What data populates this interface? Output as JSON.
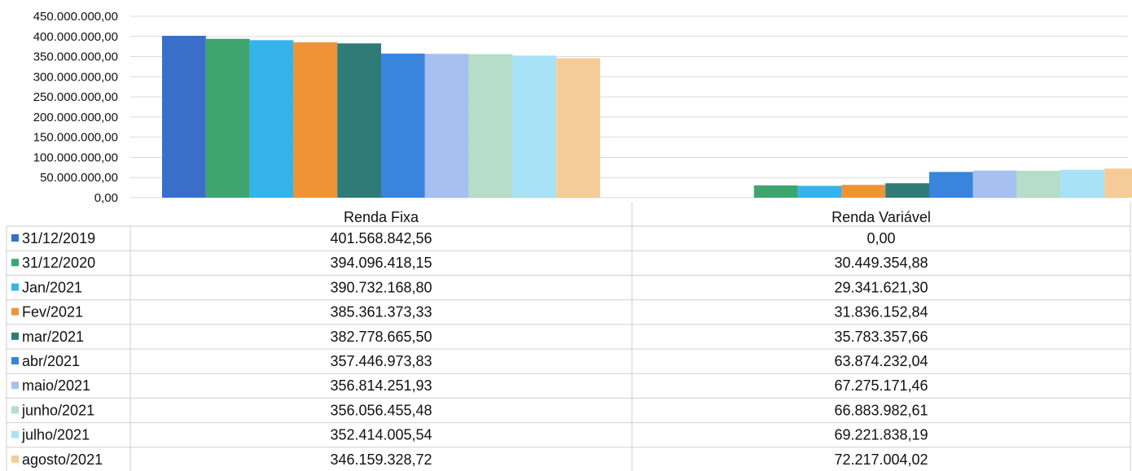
{
  "chart_data": {
    "type": "bar",
    "categories": [
      "Renda Fixa",
      "Renda Variável"
    ],
    "ylim": [
      0,
      450000000
    ],
    "y_ticks": [
      0,
      50000000,
      100000000,
      150000000,
      200000000,
      250000000,
      300000000,
      350000000,
      400000000,
      450000000
    ],
    "y_tick_labels": [
      "0,00",
      "50.000.000,00",
      "100.000.000,00",
      "150.000.000,00",
      "200.000.000,00",
      "250.000.000,00",
      "300.000.000,00",
      "350.000.000,00",
      "400.000.000,00",
      "450.000.000,00"
    ],
    "grid": true,
    "legend": "data-table",
    "series": [
      {
        "name": "31/12/2019",
        "color": "#3a6fc9",
        "values": [
          401568842.56,
          0.0
        ],
        "labels": [
          "401.568.842,56",
          "0,00"
        ]
      },
      {
        "name": "31/12/2020",
        "color": "#3fa56f",
        "values": [
          394096418.15,
          30449354.88
        ],
        "labels": [
          "394.096.418,15",
          "30.449.354,88"
        ]
      },
      {
        "name": "Jan/2021",
        "color": "#37b3ec",
        "values": [
          390732168.8,
          29341621.3
        ],
        "labels": [
          "390.732.168,80",
          "29.341.621,30"
        ]
      },
      {
        "name": "Fev/2021",
        "color": "#ee9437",
        "values": [
          385361373.33,
          31836152.84
        ],
        "labels": [
          "385.361.373,33",
          "31.836.152,84"
        ]
      },
      {
        "name": "mar/2021",
        "color": "#2f7b77",
        "values": [
          382778665.5,
          35783357.66
        ],
        "labels": [
          "382.778.665,50",
          "35.783.357,66"
        ]
      },
      {
        "name": "abr/2021",
        "color": "#3985de",
        "values": [
          357446973.83,
          63874232.04
        ],
        "labels": [
          "357.446.973,83",
          "63.874.232,04"
        ]
      },
      {
        "name": "maio/2021",
        "color": "#a6c1f0",
        "values": [
          356814251.93,
          67275171.46
        ],
        "labels": [
          "356.814.251,93",
          "67.275.171,46"
        ]
      },
      {
        "name": "junho/2021",
        "color": "#b6ddc7",
        "values": [
          356056455.48,
          66883982.61
        ],
        "labels": [
          "356.056.455,48",
          "66.883.982,61"
        ]
      },
      {
        "name": "julho/2021",
        "color": "#a8e2f6",
        "values": [
          352414005.54,
          69221838.19
        ],
        "labels": [
          "352.414.005,54",
          "69.221.838,19"
        ]
      },
      {
        "name": "agosto/2021",
        "color": "#f5cc97",
        "values": [
          346159328.72,
          72217004.02
        ],
        "labels": [
          "346.159.328,72",
          "72.217.004,02"
        ]
      }
    ]
  }
}
